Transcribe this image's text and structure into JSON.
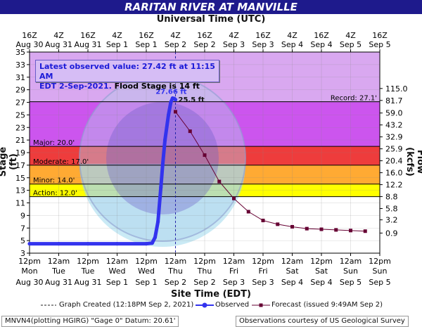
{
  "header": {
    "title": "RARITAN RIVER AT MANVILLE",
    "utc_axis_title": "Universal Time (UTC)",
    "site_axis_title": "Site Time (EDT)"
  },
  "info_box": {
    "line1": "Latest observed value: 27.42 ft at 11:15 AM",
    "line2_time": "EDT 2-Sep-2021.",
    "line2_flood": "Flood Stage is 14 ft"
  },
  "legend": {
    "created": "Graph Created (12:18PM Sep 2, 2021)",
    "observed": "Observed",
    "forecast": "Forecast (issued 9:49AM Sep 2)"
  },
  "footer": {
    "left": "MNVN4(plotting HGIRG) \"Gage 0\" Datum: 20.61'",
    "right": "Observations courtesy of US Geological Survey"
  },
  "colors": {
    "title_bg": "#1e1a8c",
    "record": "#d9a8f0",
    "major": "#cc55ee",
    "moderate": "#ee3c3c",
    "minor": "#ffaa33",
    "action": "#ffff00",
    "normal": "#ffffff",
    "observed": "#3333ee",
    "forecast": "#660033"
  },
  "chart_data": {
    "type": "line",
    "title": "RARITAN RIVER AT MANVILLE",
    "xlabel": "Site Time (EDT)",
    "ylabel": "Stage (ft)",
    "y2label": "Flow (kcfs)",
    "ylim": [
      3,
      35
    ],
    "xlim": [
      0,
      6
    ],
    "y_ticks": [
      3,
      5,
      7,
      9,
      11,
      13,
      15,
      17,
      19,
      21,
      23,
      25,
      27,
      29,
      31,
      33,
      35
    ],
    "flow_ticks": [
      {
        "stage": 6.2,
        "label": "0.9"
      },
      {
        "stage": 8.3,
        "label": "3.2"
      },
      {
        "stage": 10.1,
        "label": "5.8"
      },
      {
        "stage": 12.0,
        "label": "8.8"
      },
      {
        "stage": 13.9,
        "label": "12.2"
      },
      {
        "stage": 15.8,
        "label": "16.0"
      },
      {
        "stage": 17.7,
        "label": "20.4"
      },
      {
        "stage": 19.6,
        "label": "25.9"
      },
      {
        "stage": 21.5,
        "label": "32.9"
      },
      {
        "stage": 23.4,
        "label": "43.2"
      },
      {
        "stage": 25.3,
        "label": "59.0"
      },
      {
        "stage": 27.3,
        "label": "81.7"
      },
      {
        "stage": 29.2,
        "label": "115.0"
      }
    ],
    "bottom_ticks": [
      {
        "top": "12pm",
        "bottom": "Mon",
        "date": "Aug 30"
      },
      {
        "top": "12am",
        "bottom": "Tue",
        "date": "Aug 31"
      },
      {
        "top": "12pm",
        "bottom": "Tue",
        "date": "Aug 31"
      },
      {
        "top": "12am",
        "bottom": "Wed",
        "date": "Sep 1"
      },
      {
        "top": "12pm",
        "bottom": "Wed",
        "date": "Sep 1"
      },
      {
        "top": "12am",
        "bottom": "Thu",
        "date": "Sep 2"
      },
      {
        "top": "12pm",
        "bottom": "Thu",
        "date": "Sep 2"
      },
      {
        "top": "12am",
        "bottom": "Fri",
        "date": "Sep 3"
      },
      {
        "top": "12pm",
        "bottom": "Fri",
        "date": "Sep 3"
      },
      {
        "top": "12am",
        "bottom": "Sat",
        "date": "Sep 4"
      },
      {
        "top": "12pm",
        "bottom": "Sat",
        "date": "Sep 4"
      },
      {
        "top": "12am",
        "bottom": "Sun",
        "date": "Sep 5"
      },
      {
        "top": "12pm",
        "bottom": "Sun",
        "date": "Sep 5"
      }
    ],
    "top_ticks": [
      {
        "time": "16Z",
        "date": "Aug 30"
      },
      {
        "time": "4Z",
        "date": "Aug 31"
      },
      {
        "time": "16Z",
        "date": "Aug 31"
      },
      {
        "time": "4Z",
        "date": "Sep 1"
      },
      {
        "time": "16Z",
        "date": "Sep 1"
      },
      {
        "time": "4Z",
        "date": "Sep 2"
      },
      {
        "time": "16Z",
        "date": "Sep 2"
      },
      {
        "time": "4Z",
        "date": "Sep 3"
      },
      {
        "time": "16Z",
        "date": "Sep 3"
      },
      {
        "time": "4Z",
        "date": "Sep 4"
      },
      {
        "time": "16Z",
        "date": "Sep 4"
      },
      {
        "time": "4Z",
        "date": "Sep 5"
      },
      {
        "time": "16Z",
        "date": "Sep 5"
      }
    ],
    "flood_categories": [
      {
        "name": "Record",
        "label": "Record: 27.1'",
        "stage": 27.1
      },
      {
        "name": "Major",
        "label": "Major: 20.0'",
        "stage": 20.0
      },
      {
        "name": "Moderate",
        "label": "Moderate: 17.0'",
        "stage": 17.0
      },
      {
        "name": "Minor",
        "label": "Minor: 14.0'",
        "stage": 14.0
      },
      {
        "name": "Action",
        "label": "Action: 12.0'",
        "stage": 12.0
      }
    ],
    "graph_created_x": 2.5,
    "series": [
      {
        "name": "Observed",
        "peak_label": "27.66 ft",
        "x": [
          0,
          0.5,
          1.0,
          1.5,
          2.0,
          2.1,
          2.15,
          2.2,
          2.25,
          2.28,
          2.32,
          2.38,
          2.42,
          2.45,
          2.48,
          2.5
        ],
        "y": [
          4.5,
          4.5,
          4.5,
          4.5,
          4.5,
          4.6,
          5.5,
          8.0,
          13.5,
          17.0,
          21.0,
          25.0,
          27.0,
          27.66,
          27.6,
          27.42
        ]
      },
      {
        "name": "Forecast",
        "peak_label": "25.5 ft",
        "x": [
          2.5,
          2.75,
          3.0,
          3.25,
          3.5,
          3.75,
          4.0,
          4.25,
          4.5,
          4.75,
          5.0,
          5.25,
          5.5,
          5.75
        ],
        "y": [
          25.5,
          22.4,
          18.6,
          14.4,
          11.7,
          9.6,
          8.2,
          7.6,
          7.2,
          6.9,
          6.8,
          6.7,
          6.6,
          6.5
        ]
      }
    ]
  }
}
